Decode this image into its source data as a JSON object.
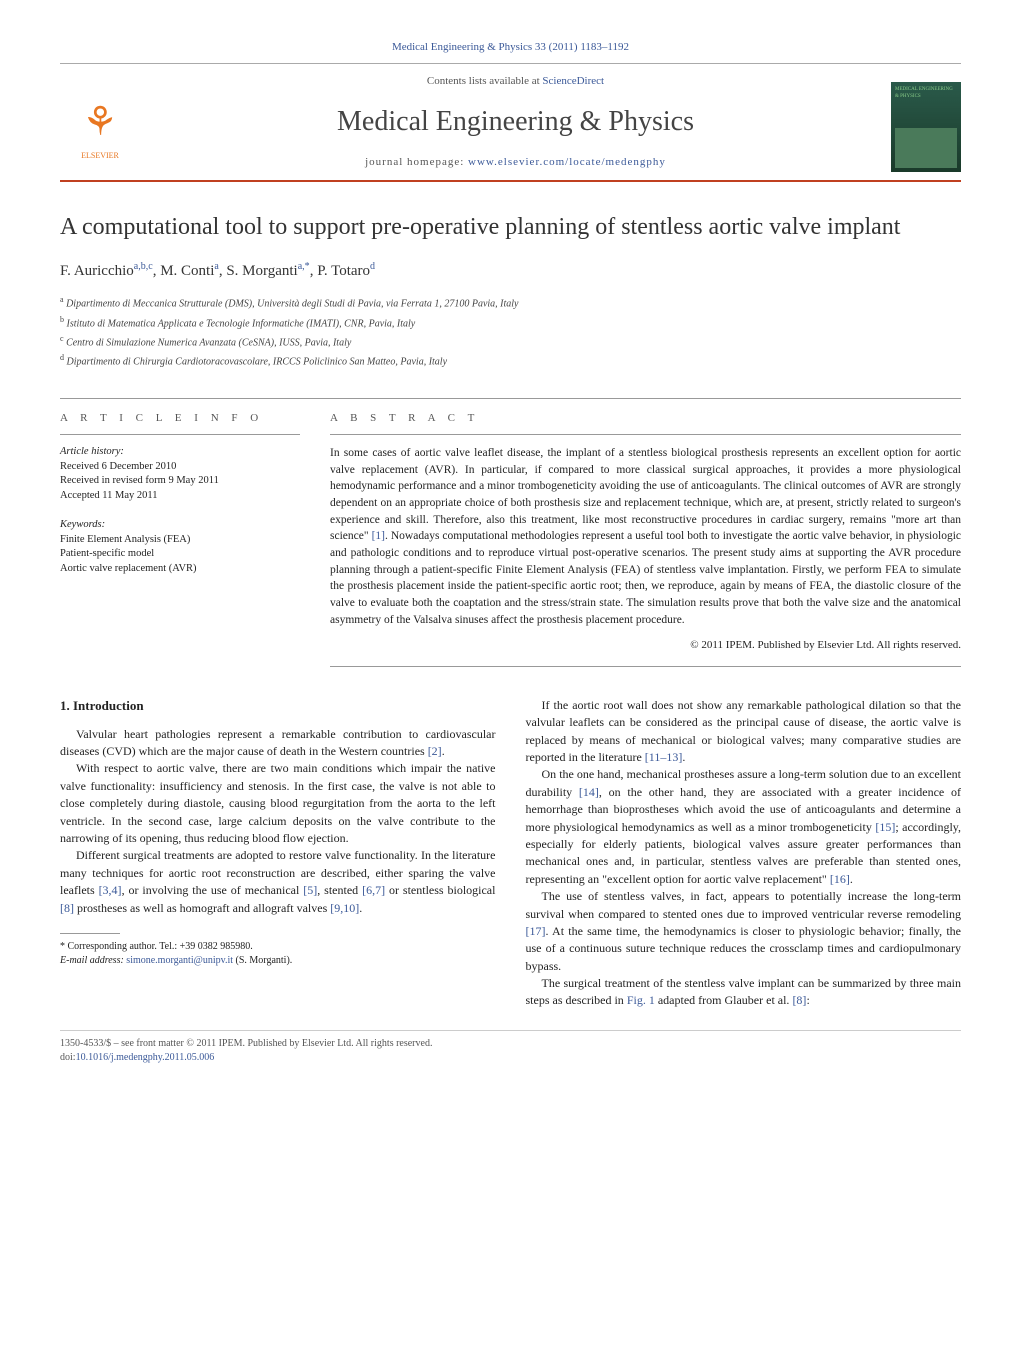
{
  "header": {
    "citation_prefix": "Medical Engineering & Physics 33 (2011) 1183–1192",
    "contents_line_pre": "Contents lists available at ",
    "contents_line_link": "ScienceDirect",
    "journal_name": "Medical Engineering & Physics",
    "homepage_pre": "journal homepage: ",
    "homepage_url": "www.elsevier.com/locate/medengphy",
    "elsevier_label": "ELSEVIER",
    "cover_label": "MEDICAL ENGINEERING & PHYSICS"
  },
  "article": {
    "title": "A computational tool to support pre-operative planning of stentless aortic valve implant",
    "authors_html": "F. Auricchio",
    "authors": [
      {
        "name": "F. Auricchio",
        "marks": "a,b,c"
      },
      {
        "name": "M. Conti",
        "marks": "a"
      },
      {
        "name": "S. Morganti",
        "marks": "a,*"
      },
      {
        "name": "P. Totaro",
        "marks": "d"
      }
    ],
    "affiliations": [
      {
        "mark": "a",
        "text": "Dipartimento di Meccanica Strutturale (DMS), Università degli Studi di Pavia, via Ferrata 1, 27100 Pavia, Italy"
      },
      {
        "mark": "b",
        "text": "Istituto di Matematica Applicata e Tecnologie Informatiche (IMATI), CNR, Pavia, Italy"
      },
      {
        "mark": "c",
        "text": "Centro di Simulazione Numerica Avanzata (CeSNA), IUSS, Pavia, Italy"
      },
      {
        "mark": "d",
        "text": "Dipartimento di Chirurgia Cardiotoracovascolare, IRCCS Policlinico San Matteo, Pavia, Italy"
      }
    ]
  },
  "info": {
    "heading": "A R T I C L E   I N F O",
    "history_label": "Article history:",
    "history": [
      "Received 6 December 2010",
      "Received in revised form 9 May 2011",
      "Accepted 11 May 2011"
    ],
    "keywords_label": "Keywords:",
    "keywords": [
      "Finite Element Analysis (FEA)",
      "Patient-specific model",
      "Aortic valve replacement (AVR)"
    ]
  },
  "abstract": {
    "heading": "A B S T R A C T",
    "text_pre": "In some cases of aortic valve leaflet disease, the implant of a stentless biological prosthesis represents an excellent option for aortic valve replacement (AVR). In particular, if compared to more classical surgical approaches, it provides a more physiological hemodynamic performance and a minor trombogeneticity avoiding the use of anticoagulants. The clinical outcomes of AVR are strongly dependent on an appropriate choice of both prosthesis size and replacement technique, which are, at present, strictly related to surgeon's experience and skill. Therefore, also this treatment, like most reconstructive procedures in cardiac surgery, remains \"more art than science\" ",
    "ref1": "[1]",
    "text_post": ". Nowadays computational methodologies represent a useful tool both to investigate the aortic valve behavior, in physiologic and pathologic conditions and to reproduce virtual post-operative scenarios. The present study aims at supporting the AVR procedure planning through a patient-specific Finite Element Analysis (FEA) of stentless valve implantation. Firstly, we perform FEA to simulate the prosthesis placement inside the patient-specific aortic root; then, we reproduce, again by means of FEA, the diastolic closure of the valve to evaluate both the coaptation and the stress/strain state. The simulation results prove that both the valve size and the anatomical asymmetry of the Valsalva sinuses affect the prosthesis placement procedure.",
    "copyright": "© 2011 IPEM. Published by Elsevier Ltd. All rights reserved."
  },
  "body": {
    "section_heading": "1.  Introduction",
    "left": {
      "p1_pre": "Valvular heart pathologies represent a remarkable contribution to cardiovascular diseases (CVD) which are the major cause of death in the Western countries ",
      "p1_ref": "[2]",
      "p1_post": ".",
      "p2": "With respect to aortic valve, there are two main conditions which impair the native valve functionality: insufficiency and stenosis. In the first case, the valve is not able to close completely during diastole, causing blood regurgitation from the aorta to the left ventricle. In the second case, large calcium deposits on the valve contribute to the narrowing of its opening, thus reducing blood flow ejection.",
      "p3_pre": "Different surgical treatments are adopted to restore valve functionality. In the literature many techniques for aortic root reconstruction are described, either sparing the valve leaflets ",
      "p3_ref1": "[3,4]",
      "p3_mid1": ", or involving the use of mechanical ",
      "p3_ref2": "[5]",
      "p3_mid2": ", stented ",
      "p3_ref3": "[6,7]",
      "p3_mid3": " or stentless biological ",
      "p3_ref4": "[8]",
      "p3_mid4": " prostheses as well as homograft and allograft valves ",
      "p3_ref5": "[9,10]",
      "p3_post": "."
    },
    "right": {
      "p1_pre": "If the aortic root wall does not show any remarkable pathological dilation so that the valvular leaflets can be considered as the principal cause of disease, the aortic valve is replaced by means of mechanical or biological valves; many comparative studies are reported in the literature ",
      "p1_ref": "[11–13]",
      "p1_post": ".",
      "p2_pre": "On the one hand, mechanical prostheses assure a long-term solution due to an excellent durability ",
      "p2_ref1": "[14]",
      "p2_mid1": ", on the other hand, they are associated with a greater incidence of hemorrhage than bioprostheses which avoid the use of anticoagulants and determine a more physiological hemodynamics as well as a minor trombogeneticity ",
      "p2_ref2": "[15]",
      "p2_mid2": "; accordingly, especially for elderly patients, biological valves assure greater performances than mechanical ones and, in particular, stentless valves are preferable than stented ones, representing an \"excellent option for aortic valve replacement\" ",
      "p2_ref3": "[16]",
      "p2_post": ".",
      "p3_pre": "The use of stentless valves, in fact, appears to potentially increase the long-term survival when compared to stented ones due to improved ventricular reverse remodeling ",
      "p3_ref": "[17]",
      "p3_post": ". At the same time, the hemodynamics is closer to physiologic behavior; finally, the use of a continuous suture technique reduces the crossclamp times and cardiopulmonary bypass.",
      "p4_pre": "The surgical treatment of the stentless valve implant can be summarized by three main steps as described in ",
      "p4_ref1": "Fig. 1",
      "p4_mid": " adapted from Glauber et al. ",
      "p4_ref2": "[8]",
      "p4_post": ":"
    }
  },
  "footnote": {
    "corresp_label": "* Corresponding author. Tel.: +39 0382 985980.",
    "email_label": "E-mail address:",
    "email": "simone.morganti@unipv.it",
    "email_who": "(S. Morganti)."
  },
  "bottom": {
    "line1": "1350-4533/$ – see front matter © 2011 IPEM. Published by Elsevier Ltd. All rights reserved.",
    "doi_pre": "doi:",
    "doi": "10.1016/j.medengphy.2011.05.006"
  },
  "colors": {
    "accent_rule": "#c04020",
    "link": "#3b5998",
    "elsevier": "#e87722"
  }
}
